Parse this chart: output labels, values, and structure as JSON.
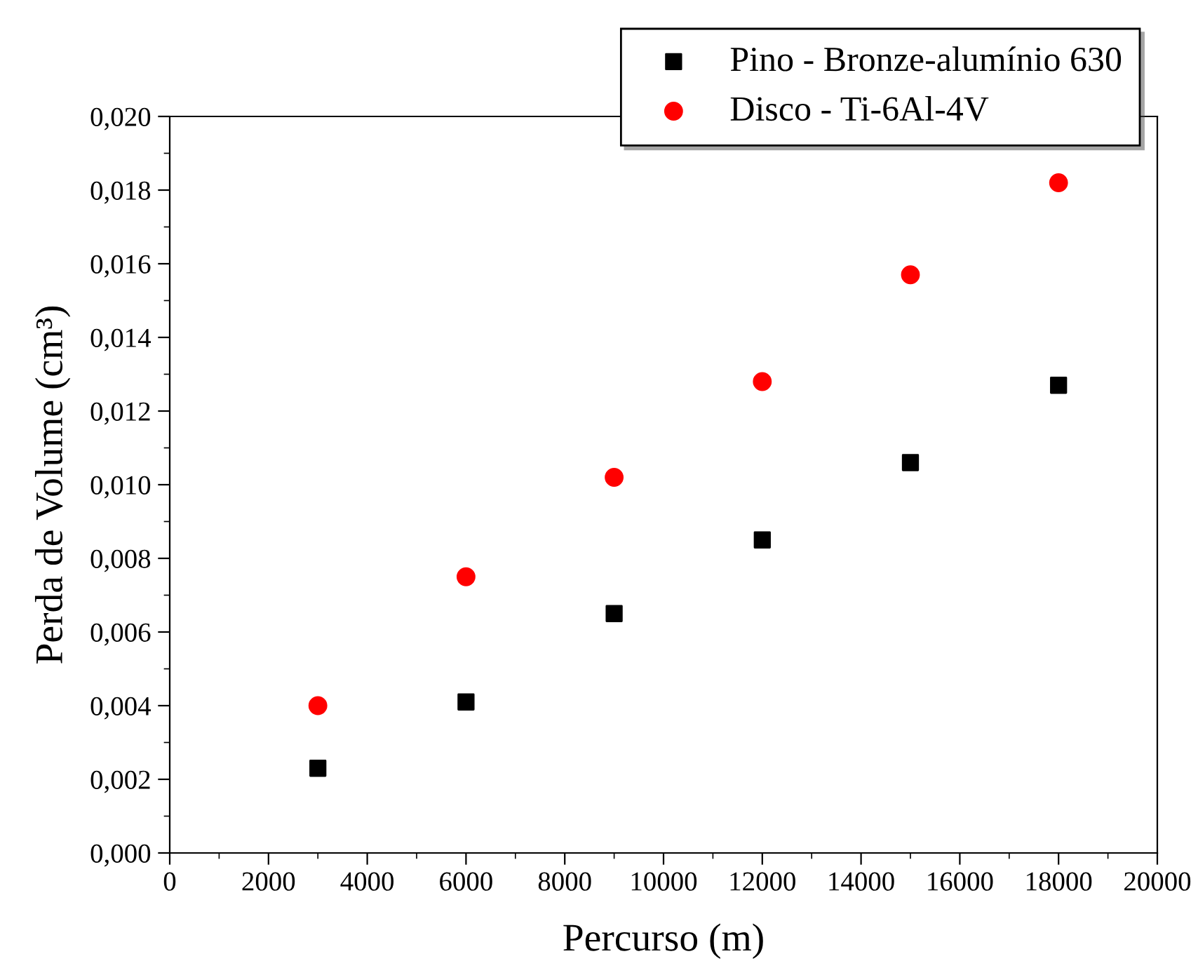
{
  "chart_data": {
    "type": "scatter",
    "xlabel": "Percurso (m)",
    "ylabel": "Perda de Volume (cm³)",
    "x": [
      3000,
      6000,
      9000,
      12000,
      15000,
      18000
    ],
    "series": [
      {
        "name": "Pino - Bronze-alumínio 630",
        "color": "#000000",
        "marker": "square",
        "values": [
          0.0023,
          0.0041,
          0.0065,
          0.0085,
          0.0106,
          0.0127
        ]
      },
      {
        "name": "Disco - Ti-6Al-4V",
        "color": "#ff0000",
        "marker": "circle",
        "values": [
          0.004,
          0.0075,
          0.0102,
          0.0128,
          0.0157,
          0.0182
        ]
      }
    ],
    "xlim": [
      0,
      20000
    ],
    "xticks": [
      0,
      2000,
      4000,
      6000,
      8000,
      10000,
      12000,
      14000,
      16000,
      18000,
      20000
    ],
    "ylim": [
      0,
      0.02
    ],
    "yticks": [
      {
        "value": 0,
        "label": "0,000"
      },
      {
        "value": 0.002,
        "label": "0,002"
      },
      {
        "value": 0.004,
        "label": "0,004"
      },
      {
        "value": 0.006,
        "label": "0,006"
      },
      {
        "value": 0.008,
        "label": "0,008"
      },
      {
        "value": 0.01,
        "label": "0,010"
      },
      {
        "value": 0.012,
        "label": "0,012"
      },
      {
        "value": 0.014,
        "label": "0,014"
      },
      {
        "value": 0.016,
        "label": "0,016"
      },
      {
        "value": 0.018,
        "label": "0,018"
      },
      {
        "value": 0.02,
        "label": "0,020"
      }
    ],
    "grid": false,
    "legend": "top right"
  }
}
